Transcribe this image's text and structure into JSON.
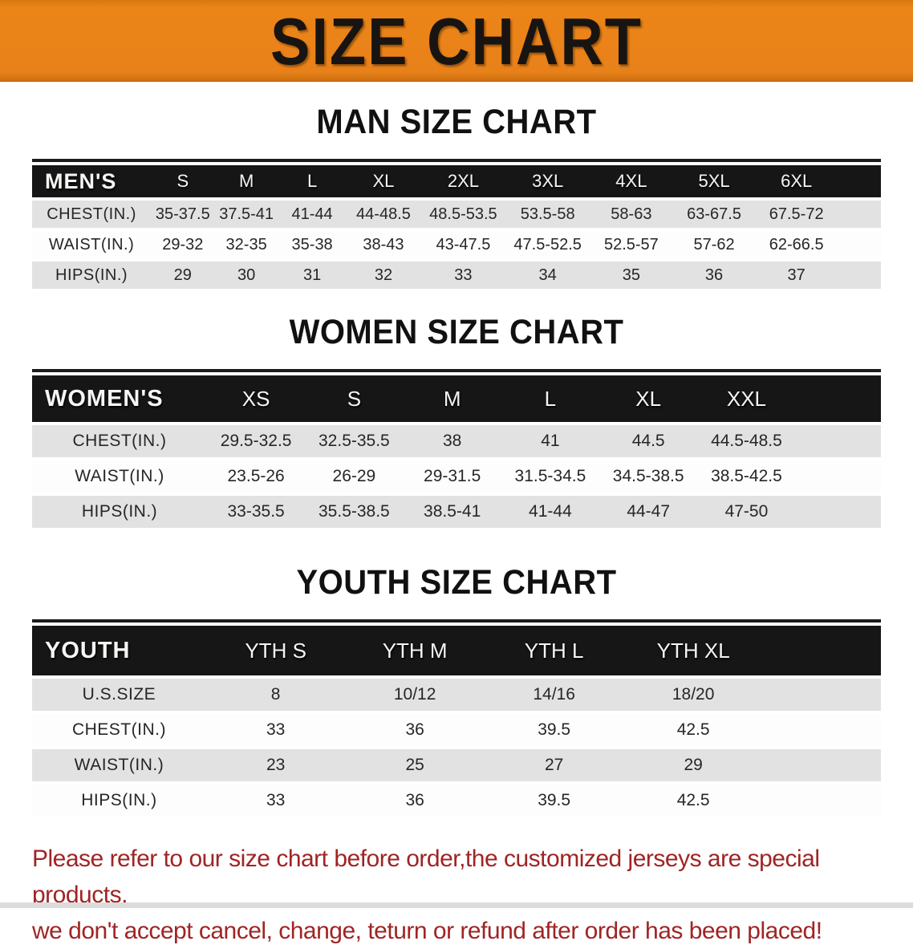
{
  "banner": {
    "title": "SIZE CHART",
    "bg_color": "#e8811a",
    "text_color": "#181411"
  },
  "sections": [
    {
      "heading": "MAN SIZE CHART",
      "table": {
        "group_label": "MEN'S",
        "columns": [
          "S",
          "M",
          "L",
          "XL",
          "2XL",
          "3XL",
          "4XL",
          "5XL",
          "6XL"
        ],
        "rows": [
          {
            "label": "CHEST(IN.)",
            "values": [
              "35-37.5",
              "37.5-41",
              "41-44",
              "44-48.5",
              "48.5-53.5",
              "53.5-58",
              "58-63",
              "63-67.5",
              "67.5-72"
            ]
          },
          {
            "label": "WAIST(IN.)",
            "values": [
              "29-32",
              "32-35",
              "35-38",
              "38-43",
              "43-47.5",
              "47.5-52.5",
              "52.5-57",
              "57-62",
              "62-66.5"
            ]
          },
          {
            "label": "HIPS(IN.)",
            "values": [
              "29",
              "30",
              "31",
              "32",
              "33",
              "34",
              "35",
              "36",
              "37"
            ]
          }
        ]
      }
    },
    {
      "heading": "WOMEN SIZE CHART",
      "table": {
        "group_label": "WOMEN'S",
        "columns": [
          "XS",
          "S",
          "M",
          "L",
          "XL",
          "XXL"
        ],
        "rows": [
          {
            "label": "CHEST(IN.)",
            "values": [
              "29.5-32.5",
              "32.5-35.5",
              "38",
              "41",
              "44.5",
              "44.5-48.5"
            ]
          },
          {
            "label": "WAIST(IN.)",
            "values": [
              "23.5-26",
              "26-29",
              "29-31.5",
              "31.5-34.5",
              "34.5-38.5",
              "38.5-42.5"
            ]
          },
          {
            "label": "HIPS(IN.)",
            "values": [
              "33-35.5",
              "35.5-38.5",
              "38.5-41",
              "41-44",
              "44-47",
              "47-50"
            ]
          }
        ]
      }
    },
    {
      "heading": "YOUTH SIZE CHART",
      "table": {
        "group_label": "YOUTH",
        "columns": [
          "YTH S",
          "YTH M",
          "YTH L",
          "YTH XL"
        ],
        "rows": [
          {
            "label": "U.S.SIZE",
            "values": [
              "8",
              "10/12",
              "14/16",
              "18/20"
            ]
          },
          {
            "label": "CHEST(IN.)",
            "values": [
              "33",
              "36",
              "39.5",
              "42.5"
            ]
          },
          {
            "label": "WAIST(IN.)",
            "values": [
              "23",
              "25",
              "27",
              "29"
            ]
          },
          {
            "label": "HIPS(IN.)",
            "values": [
              "33",
              "36",
              "39.5",
              "42.5"
            ]
          }
        ]
      }
    }
  ],
  "disclaimer": {
    "line1": "Please refer to our size chart before order,the customized jerseys are special products,",
    "line2": "we don't accept cancel, change, teturn or refund after order has been placed!",
    "text_color": "#a02424"
  },
  "colors": {
    "header_row_bg": "#161616",
    "gray_row_bg": "#e2e2e2",
    "white_row_bg": "#fdfdfd"
  }
}
